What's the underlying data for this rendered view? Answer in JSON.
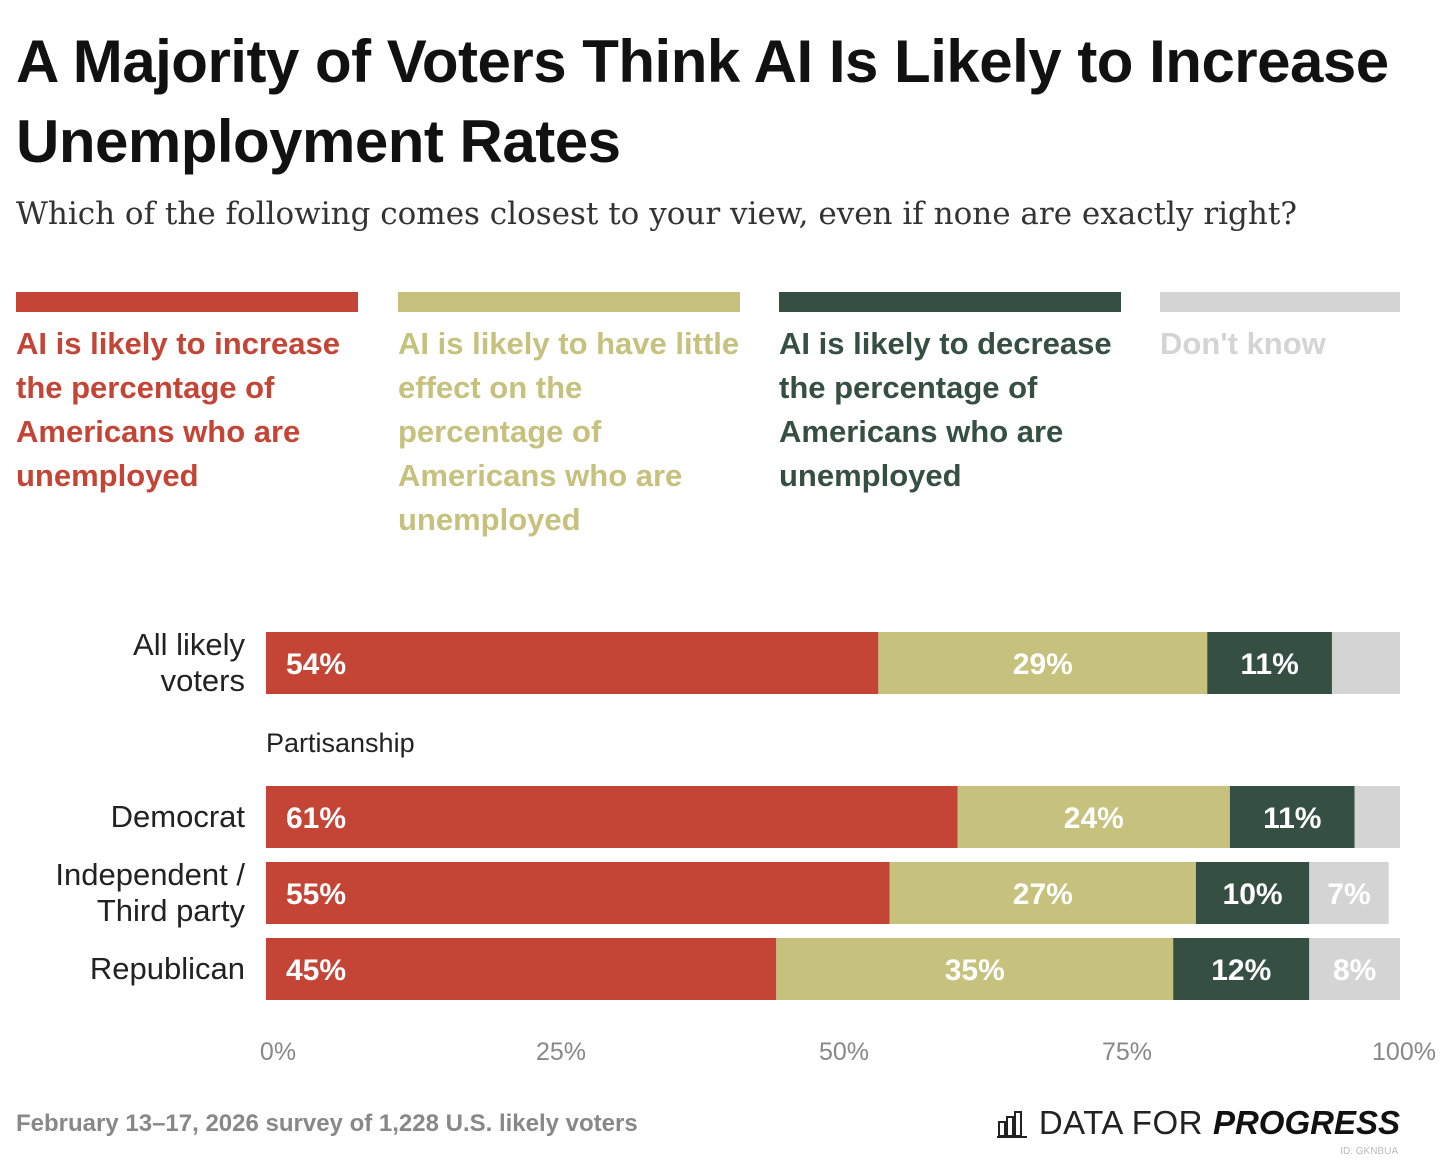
{
  "header": {
    "title": "A Majority of Voters Think AI Is Likely to Increase Unemployment Rates",
    "subtitle": "Which of the following comes closest to your view, even if none are exactly right?"
  },
  "legend": [
    {
      "label": "AI is likely to increase the percentage of Americans who are unemployed",
      "color": "#c44536"
    },
    {
      "label": "AI is likely to have little effect on the percentage of Americans who are unemployed",
      "color": "#c6c17c"
    },
    {
      "label": "AI is likely to decrease the percentage of Americans who are unemployed",
      "color": "#354f42"
    },
    {
      "label": "Don't know",
      "color": "#d4d4d4"
    }
  ],
  "chart_data": {
    "type": "bar",
    "orientation": "horizontal",
    "stacked": true,
    "title": "A Majority of Voters Think AI Is Likely to Increase Unemployment Rates",
    "xlim": [
      0,
      100
    ],
    "xticks": [
      "0%",
      "25%",
      "50%",
      "75%",
      "100%"
    ],
    "group_label": "Partisanship",
    "categories": [
      "All likely voters",
      "Democrat",
      "Independent / Third party",
      "Republican"
    ],
    "series": [
      {
        "name": "AI is likely to increase the percentage of Americans who are unemployed",
        "values": [
          54,
          61,
          55,
          45
        ],
        "labels": [
          "54%",
          "61%",
          "55%",
          "45%"
        ]
      },
      {
        "name": "AI is likely to have little effect on the percentage of Americans who are unemployed",
        "values": [
          29,
          24,
          27,
          35
        ],
        "labels": [
          "29%",
          "24%",
          "27%",
          "35%"
        ]
      },
      {
        "name": "AI is likely to decrease the percentage of Americans who are unemployed",
        "values": [
          11,
          11,
          10,
          12
        ],
        "labels": [
          "11%",
          "11%",
          "10%",
          "12%"
        ]
      },
      {
        "name": "Don't know",
        "values": [
          6,
          4,
          7,
          8
        ],
        "labels": [
          "",
          "",
          "7%",
          "8%"
        ]
      }
    ]
  },
  "footer": {
    "source": "February 13–17, 2026 survey of 1,228 U.S. likely voters",
    "logo_text_a": "DATA FOR",
    "logo_text_b": "PROGRESS",
    "logo_icon": "bar-chart-logo-icon",
    "chart_id": "ID: GKNBUA"
  }
}
